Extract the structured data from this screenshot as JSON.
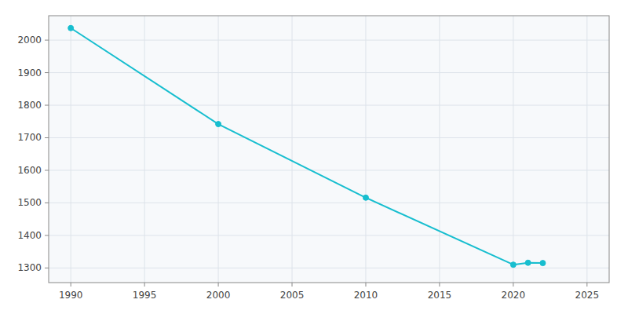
{
  "chart_data": {
    "type": "line",
    "x": [
      1990,
      2000,
      2010,
      2020,
      2021,
      2022
    ],
    "series": [
      {
        "values": [
          2037,
          1742,
          1516,
          1310,
          1316,
          1315
        ],
        "color": "#17BECF",
        "marker": "circle"
      }
    ],
    "xlim": [
      1988.5,
      2026.5
    ],
    "ylim": [
      1255,
      2075
    ],
    "xticks": [
      1990,
      1995,
      2000,
      2005,
      2010,
      2015,
      2020,
      2025
    ],
    "yticks": [
      1300,
      1400,
      1500,
      1600,
      1700,
      1800,
      1900,
      2000
    ],
    "grid": true
  }
}
